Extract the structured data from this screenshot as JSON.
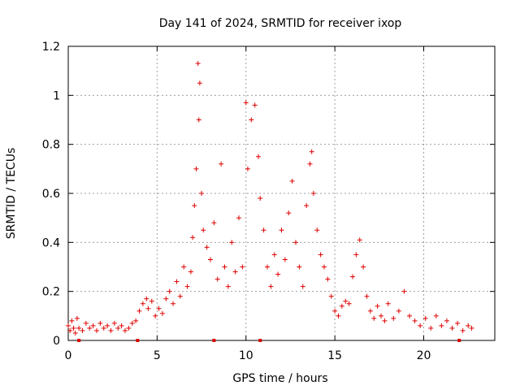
{
  "chart_data": {
    "type": "scatter",
    "title": "Day 141 of 2024, SRMTID for receiver ixop",
    "xlabel": "GPS time / hours",
    "ylabel": "SRMTID / TECUs",
    "xlim": [
      0,
      24
    ],
    "ylim": [
      0,
      1.2
    ],
    "x_ticks": [
      0,
      5,
      10,
      15,
      20
    ],
    "x_tick_labels": [
      "0",
      "5",
      "10",
      "15",
      "20"
    ],
    "y_ticks": [
      0,
      0.2,
      0.4,
      0.6,
      0.8,
      1.0,
      1.2
    ],
    "y_tick_labels": [
      "0",
      "0.2",
      "0.4",
      "0.6",
      "0.8",
      "1",
      "1.2"
    ],
    "grid": true,
    "marker": "plus",
    "color": "#e00000",
    "series": [
      {
        "name": "SRMTID",
        "points": [
          [
            0.0,
            0.06
          ],
          [
            0.1,
            0.04
          ],
          [
            0.2,
            0.08
          ],
          [
            0.3,
            0.05
          ],
          [
            0.4,
            0.03
          ],
          [
            0.5,
            0.09
          ],
          [
            0.6,
            0.05
          ],
          [
            0.8,
            0.04
          ],
          [
            1.0,
            0.07
          ],
          [
            1.2,
            0.05
          ],
          [
            1.4,
            0.06
          ],
          [
            1.6,
            0.04
          ],
          [
            1.8,
            0.07
          ],
          [
            2.0,
            0.05
          ],
          [
            2.2,
            0.06
          ],
          [
            2.4,
            0.04
          ],
          [
            2.6,
            0.07
          ],
          [
            2.8,
            0.05
          ],
          [
            3.0,
            0.06
          ],
          [
            3.2,
            0.04
          ],
          [
            3.4,
            0.05
          ],
          [
            3.6,
            0.07
          ],
          [
            3.8,
            0.08
          ],
          [
            4.0,
            0.12
          ],
          [
            4.2,
            0.15
          ],
          [
            4.4,
            0.17
          ],
          [
            4.5,
            0.13
          ],
          [
            4.7,
            0.16
          ],
          [
            4.9,
            0.1
          ],
          [
            5.1,
            0.13
          ],
          [
            5.3,
            0.11
          ],
          [
            5.5,
            0.17
          ],
          [
            5.7,
            0.2
          ],
          [
            5.9,
            0.15
          ],
          [
            6.1,
            0.24
          ],
          [
            6.3,
            0.18
          ],
          [
            6.5,
            0.3
          ],
          [
            6.7,
            0.22
          ],
          [
            6.9,
            0.28
          ],
          [
            7.0,
            0.42
          ],
          [
            7.1,
            0.55
          ],
          [
            7.2,
            0.7
          ],
          [
            7.3,
            1.13
          ],
          [
            7.35,
            0.9
          ],
          [
            7.4,
            1.05
          ],
          [
            7.5,
            0.6
          ],
          [
            7.6,
            0.45
          ],
          [
            7.8,
            0.38
          ],
          [
            8.0,
            0.33
          ],
          [
            8.2,
            0.48
          ],
          [
            8.4,
            0.25
          ],
          [
            8.6,
            0.72
          ],
          [
            8.8,
            0.3
          ],
          [
            9.0,
            0.22
          ],
          [
            9.2,
            0.4
          ],
          [
            9.4,
            0.28
          ],
          [
            9.6,
            0.5
          ],
          [
            9.8,
            0.3
          ],
          [
            10.0,
            0.97
          ],
          [
            10.1,
            0.7
          ],
          [
            10.3,
            0.9
          ],
          [
            10.5,
            0.96
          ],
          [
            10.7,
            0.75
          ],
          [
            10.8,
            0.58
          ],
          [
            11.0,
            0.45
          ],
          [
            11.2,
            0.3
          ],
          [
            11.4,
            0.22
          ],
          [
            11.6,
            0.35
          ],
          [
            11.8,
            0.27
          ],
          [
            12.0,
            0.45
          ],
          [
            12.2,
            0.33
          ],
          [
            12.4,
            0.52
          ],
          [
            12.6,
            0.65
          ],
          [
            12.8,
            0.4
          ],
          [
            13.0,
            0.3
          ],
          [
            13.2,
            0.22
          ],
          [
            13.4,
            0.55
          ],
          [
            13.6,
            0.72
          ],
          [
            13.7,
            0.77
          ],
          [
            13.8,
            0.6
          ],
          [
            14.0,
            0.45
          ],
          [
            14.2,
            0.35
          ],
          [
            14.4,
            0.3
          ],
          [
            14.6,
            0.25
          ],
          [
            14.8,
            0.18
          ],
          [
            15.0,
            0.12
          ],
          [
            15.2,
            0.1
          ],
          [
            15.4,
            0.14
          ],
          [
            15.6,
            0.16
          ],
          [
            15.8,
            0.15
          ],
          [
            16.0,
            0.26
          ],
          [
            16.2,
            0.35
          ],
          [
            16.4,
            0.41
          ],
          [
            16.6,
            0.3
          ],
          [
            16.8,
            0.18
          ],
          [
            17.0,
            0.12
          ],
          [
            17.2,
            0.09
          ],
          [
            17.4,
            0.14
          ],
          [
            17.6,
            0.1
          ],
          [
            17.8,
            0.08
          ],
          [
            18.0,
            0.15
          ],
          [
            18.3,
            0.09
          ],
          [
            18.6,
            0.12
          ],
          [
            18.9,
            0.2
          ],
          [
            19.2,
            0.1
          ],
          [
            19.5,
            0.08
          ],
          [
            19.8,
            0.06
          ],
          [
            20.1,
            0.09
          ],
          [
            20.4,
            0.05
          ],
          [
            20.7,
            0.1
          ],
          [
            21.0,
            0.06
          ],
          [
            21.3,
            0.08
          ],
          [
            21.6,
            0.05
          ],
          [
            21.9,
            0.07
          ],
          [
            22.2,
            0.04
          ],
          [
            22.5,
            0.06
          ],
          [
            22.7,
            0.05
          ]
        ]
      }
    ],
    "zero_markers_x": [
      0.6,
      3.9,
      8.2,
      10.8,
      22.0
    ]
  }
}
